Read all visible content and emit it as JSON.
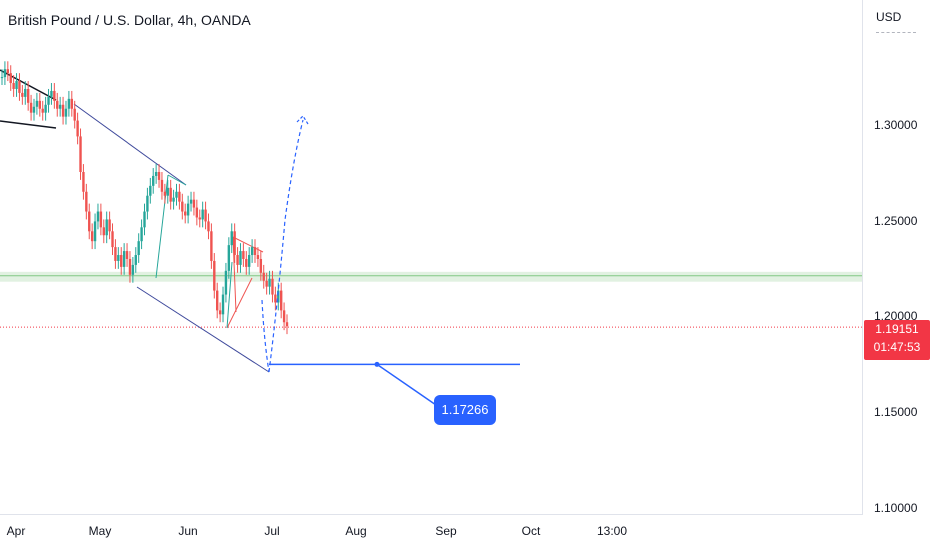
{
  "header": {
    "title": "British Pound / U.S. Dollar, 4h, OANDA",
    "currency": "USD"
  },
  "price": {
    "current": "1.19151",
    "countdown": "01:47:53",
    "color": "#f23645"
  },
  "colors": {
    "up": "#26a69a",
    "down": "#ef5350",
    "trendline": "#3f4a9c",
    "projection": "#2962ff",
    "zone": "#c8e6c9"
  },
  "chart_data": {
    "type": "line",
    "title": "British Pound / U.S. Dollar, 4h, OANDA",
    "ylabel": "USD",
    "xlabel": "",
    "ylim": [
      1.097,
      1.357
    ],
    "yticks": [
      "1.30000",
      "1.25000",
      "1.20000",
      "1.15000",
      "1.10000"
    ],
    "xticks": [
      "Apr",
      "May",
      "Jun",
      "Jul",
      "Aug",
      "Sep",
      "Oct",
      "13:00"
    ],
    "series": [
      {
        "values": [
          1.318,
          1.322,
          1.32,
          1.315,
          1.312,
          1.316,
          1.31,
          1.308,
          1.312,
          1.305,
          1.3,
          1.303,
          1.306,
          1.302,
          1.3,
          1.304,
          1.308,
          1.311,
          1.306,
          1.302,
          1.304,
          1.298,
          1.302,
          1.307,
          1.302,
          1.296,
          1.288,
          1.27,
          1.26,
          1.25,
          1.24,
          1.235,
          1.245,
          1.25,
          1.242,
          1.238,
          1.246,
          1.24,
          1.232,
          1.225,
          1.228,
          1.222,
          1.23,
          1.226,
          1.218,
          1.223,
          1.228,
          1.235,
          1.242,
          1.25,
          1.258,
          1.263,
          1.268,
          1.27,
          1.266,
          1.26,
          1.258,
          1.262,
          1.255,
          1.257,
          1.26,
          1.255,
          1.25,
          1.248,
          1.254,
          1.256,
          1.252,
          1.247,
          1.246,
          1.251,
          1.245,
          1.24,
          1.225,
          1.21,
          1.2,
          1.198,
          1.208,
          1.22,
          1.233,
          1.24,
          1.228,
          1.223,
          1.23,
          1.226,
          1.222,
          1.228,
          1.232,
          1.228,
          1.226,
          1.219,
          1.215,
          1.212,
          1.216,
          1.208,
          1.204,
          1.21,
          1.2,
          1.194,
          1.192
        ]
      }
    ],
    "annotations": {
      "target_label": "1.17266",
      "horizontal_levels": [
        1.2175,
        1.1727
      ],
      "support_zone": [
        1.2145,
        1.2195
      ]
    }
  }
}
